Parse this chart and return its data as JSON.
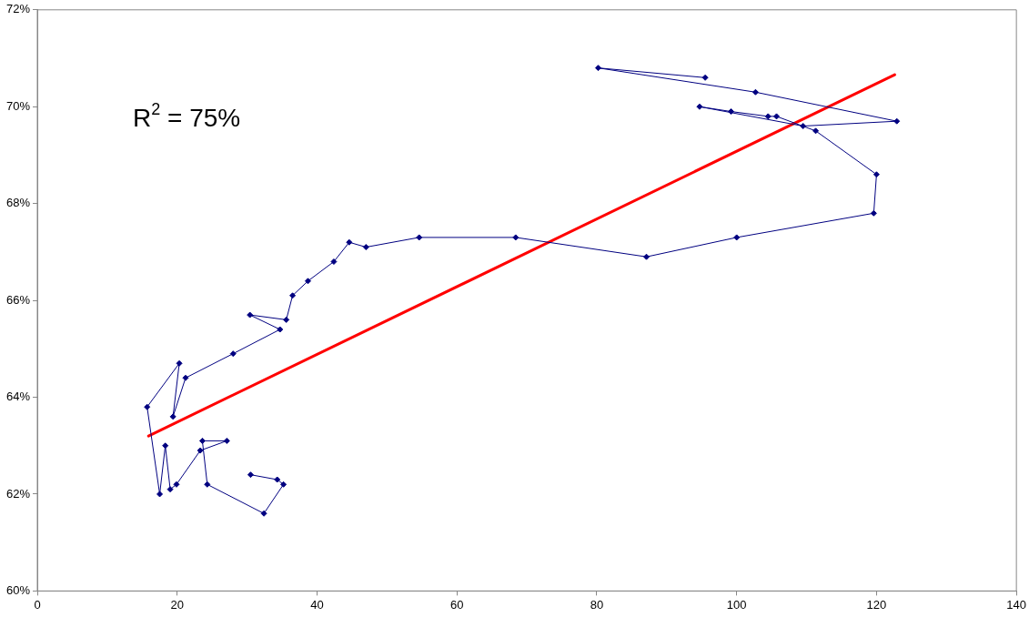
{
  "chart_data": {
    "type": "line",
    "annotations": [
      "R$^{2}$ = 75%"
    ],
    "xlim": [
      0,
      140
    ],
    "xticks": [
      0,
      20,
      40,
      60,
      80,
      100,
      120,
      140
    ],
    "ylim": [
      60,
      72
    ],
    "yticks": [
      {
        "value": 60,
        "label": "60%"
      },
      {
        "value": 62,
        "label": "62%"
      },
      {
        "value": 64,
        "label": "64%"
      },
      {
        "value": 66,
        "label": "66%"
      },
      {
        "value": 68,
        "label": "68%"
      },
      {
        "value": 70,
        "label": "70%"
      },
      {
        "value": 72,
        "label": "72%"
      }
    ],
    "grid": false,
    "legend": false,
    "marker": "diamond",
    "line_style": "solid",
    "series": [
      {
        "color": "#000080",
        "x": [
          30.5,
          34.3,
          35.2,
          32.4,
          24.3,
          23.6,
          27.1,
          23.3,
          19.9,
          19.0,
          18.3,
          17.5,
          15.7,
          20.3,
          19.4,
          21.2,
          28.0,
          34.7,
          30.4,
          35.6,
          36.5,
          38.7,
          42.4,
          44.6,
          47.0,
          54.6,
          68.4,
          87.1,
          100.0,
          119.6,
          120.0,
          111.3,
          105.7,
          104.5,
          99.2,
          94.7,
          109.5,
          122.9,
          102.7,
          80.2,
          95.5
        ],
        "values": [
          62.4,
          62.3,
          62.2,
          61.6,
          62.2,
          63.1,
          63.1,
          62.9,
          62.2,
          62.1,
          63.0,
          62.0,
          63.8,
          64.7,
          63.6,
          64.4,
          64.9,
          65.4,
          65.7,
          65.6,
          66.1,
          66.4,
          66.8,
          67.2,
          67.1,
          67.3,
          67.3,
          66.9,
          67.3,
          67.8,
          68.6,
          69.5,
          69.8,
          69.8,
          69.9,
          70.0,
          69.6,
          69.7,
          70.3,
          70.8,
          70.6
        ]
      },
      {
        "type": "line",
        "color": "#ff0000",
        "marker": "none",
        "x": [
          15.9,
          122.6
        ],
        "values": [
          63.2,
          70.66
        ]
      }
    ]
  }
}
